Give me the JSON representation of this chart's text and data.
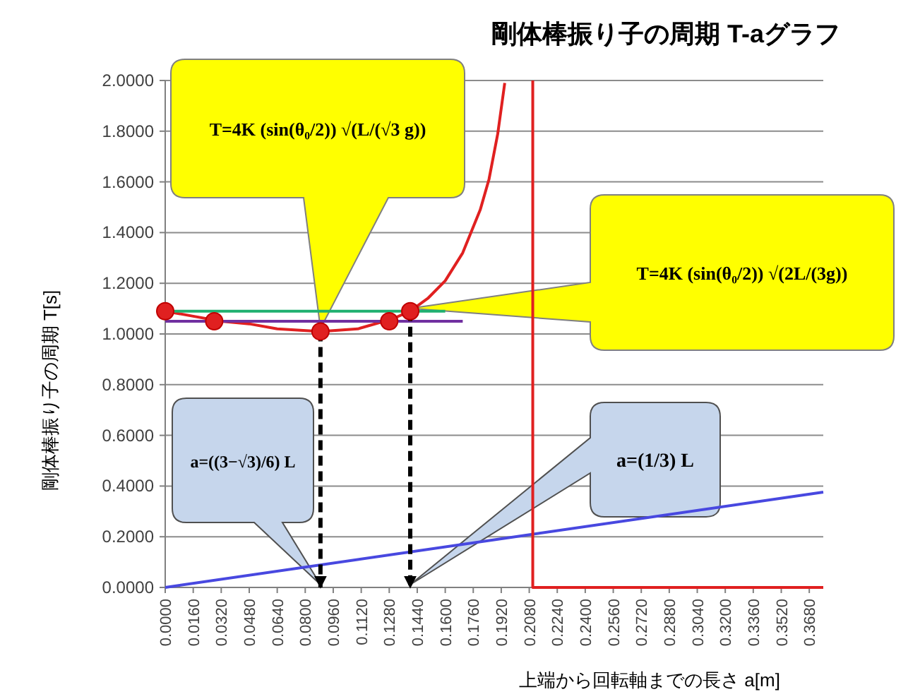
{
  "chart_data": {
    "type": "line",
    "title": "剛体棒振り子の周期  T-aグラフ",
    "xlabel": "上端から回転軸までの長さ  a[m]",
    "ylabel": "剛体棒振り子の周期  T[s]",
    "xlim": [
      0,
      0.376
    ],
    "ylim": [
      0,
      2
    ],
    "xticks": [
      {
        "value": 0,
        "label": "0.0000"
      },
      {
        "value": 0.016,
        "label": "0.0160"
      },
      {
        "value": 0.032,
        "label": "0.0320"
      },
      {
        "value": 0.048,
        "label": "0.0480"
      },
      {
        "value": 0.064,
        "label": "0.0640"
      },
      {
        "value": 0.08,
        "label": "0.0800"
      },
      {
        "value": 0.096,
        "label": "0.0960"
      },
      {
        "value": 0.112,
        "label": "0.1120"
      },
      {
        "value": 0.128,
        "label": "0.1280"
      },
      {
        "value": 0.144,
        "label": "0.1440"
      },
      {
        "value": 0.16,
        "label": "0.1600"
      },
      {
        "value": 0.176,
        "label": "0.1760"
      },
      {
        "value": 0.192,
        "label": "0.1920"
      },
      {
        "value": 0.208,
        "label": "0.2080"
      },
      {
        "value": 0.224,
        "label": "0.2240"
      },
      {
        "value": 0.24,
        "label": "0.2400"
      },
      {
        "value": 0.256,
        "label": "0.2560"
      },
      {
        "value": 0.272,
        "label": "0.2720"
      },
      {
        "value": 0.288,
        "label": "0.2880"
      },
      {
        "value": 0.304,
        "label": "0.3040"
      },
      {
        "value": 0.32,
        "label": "0.3200"
      },
      {
        "value": 0.336,
        "label": "0.3360"
      },
      {
        "value": 0.352,
        "label": "0.3520"
      },
      {
        "value": 0.368,
        "label": "0.3680"
      }
    ],
    "yticks": [
      {
        "value": 0,
        "label": "0.0000"
      },
      {
        "value": 0.2,
        "label": "0.2000"
      },
      {
        "value": 0.4,
        "label": "0.4000"
      },
      {
        "value": 0.6,
        "label": "0.6000"
      },
      {
        "value": 0.8,
        "label": "0.8000"
      },
      {
        "value": 1,
        "label": "1.0000"
      },
      {
        "value": 1.2,
        "label": "1.2000"
      },
      {
        "value": 1.4,
        "label": "1.4000"
      },
      {
        "value": 1.6,
        "label": "1.6000"
      },
      {
        "value": 1.8,
        "label": "1.8000"
      },
      {
        "value": 2,
        "label": "2.0000"
      }
    ],
    "grid": "y",
    "series": [
      {
        "type": "line",
        "color": "#e02020",
        "marker": "none",
        "line_style": "solid",
        "x": [
          0,
          0.016,
          0.032,
          0.048,
          0.064,
          0.0887,
          0.11,
          0.13,
          0.14,
          0.15,
          0.16,
          0.17,
          0.18,
          0.185,
          0.19,
          0.194
        ],
        "values": [
          1.09,
          1.07,
          1.05,
          1.04,
          1.02,
          1.01,
          1.02,
          1.06,
          1.09,
          1.14,
          1.21,
          1.32,
          1.49,
          1.61,
          1.79,
          1.99
        ]
      },
      {
        "type": "scatter",
        "color": "#e02020",
        "marker": "circle",
        "x": [
          0,
          0.028,
          0.0887,
          0.128,
          0.14
        ],
        "values": [
          1.09,
          1.05,
          1.01,
          1.05,
          1.09
        ]
      },
      {
        "type": "line",
        "color": "#20b070",
        "marker": "none",
        "line_style": "solid",
        "x": [
          0,
          0.16
        ],
        "values": [
          1.09,
          1.09
        ]
      },
      {
        "type": "line",
        "color": "#7030a0",
        "marker": "none",
        "line_style": "solid",
        "x": [
          0,
          0.17
        ],
        "values": [
          1.05,
          1.05
        ]
      },
      {
        "type": "line",
        "color": "#4848e0",
        "marker": "none",
        "line_style": "solid",
        "x": [
          0,
          0.376
        ],
        "values": [
          0,
          0.376
        ]
      },
      {
        "type": "line",
        "color": "#e02020",
        "marker": "none",
        "line_style": "solid",
        "x": [
          0.21,
          0.21,
          0.376
        ],
        "values": [
          2,
          0,
          0
        ]
      },
      {
        "type": "line",
        "color": "#000000",
        "marker": "none",
        "line_style": "dashed",
        "x": [
          0.0887,
          0.0887
        ],
        "values": [
          1.01,
          0
        ]
      },
      {
        "type": "line",
        "color": "#000000",
        "marker": "none",
        "line_style": "dashed",
        "x": [
          0.14,
          0.14
        ],
        "values": [
          1.09,
          0
        ]
      }
    ],
    "annotations": [
      "T=4K (sin(θ₀/2)) √(L/(√3 g))",
      "T=4K (sin(θ₀/2)) √(2L/(3g))",
      "a=((3−√3)/6) L",
      "a=(1/3) L"
    ]
  }
}
